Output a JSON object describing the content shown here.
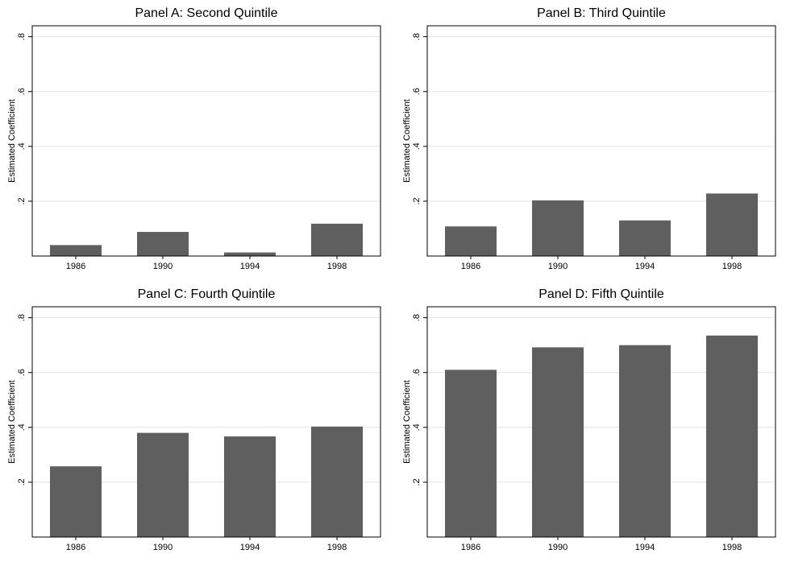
{
  "colors": {
    "bar": "#5f5f5f",
    "grid": "#e3e3e3",
    "axis": "#000000"
  },
  "chart_data": [
    {
      "type": "bar",
      "title": "Panel A: Second Quintile",
      "ylabel": "Estimated Coefficient",
      "categories": [
        "1986",
        "1990",
        "1994",
        "1998"
      ],
      "values": [
        0.04,
        0.088,
        0.013,
        0.118
      ],
      "ylim": [
        0,
        0.84
      ],
      "yticks": [
        0.2,
        0.4,
        0.6,
        0.8
      ],
      "ytick_labels": [
        ".2",
        ".4",
        ".6",
        ".8"
      ],
      "grid": true
    },
    {
      "type": "bar",
      "title": "Panel B: Third Quintile",
      "ylabel": "Estimated Coefficient",
      "categories": [
        "1986",
        "1990",
        "1994",
        "1998"
      ],
      "values": [
        0.108,
        0.203,
        0.13,
        0.228
      ],
      "ylim": [
        0,
        0.84
      ],
      "yticks": [
        0.2,
        0.4,
        0.6,
        0.8
      ],
      "ytick_labels": [
        ".2",
        ".4",
        ".6",
        ".8"
      ],
      "grid": true
    },
    {
      "type": "bar",
      "title": "Panel C: Fourth Quintile",
      "ylabel": "Estimated Coefficient",
      "categories": [
        "1986",
        "1990",
        "1994",
        "1998"
      ],
      "values": [
        0.258,
        0.38,
        0.367,
        0.403
      ],
      "ylim": [
        0,
        0.84
      ],
      "yticks": [
        0.2,
        0.4,
        0.6,
        0.8
      ],
      "ytick_labels": [
        ".2",
        ".4",
        ".6",
        ".8"
      ],
      "grid": true
    },
    {
      "type": "bar",
      "title": "Panel D: Fifth Quintile",
      "ylabel": "Estimated Coefficient",
      "categories": [
        "1986",
        "1990",
        "1994",
        "1998"
      ],
      "values": [
        0.61,
        0.692,
        0.7,
        0.735
      ],
      "ylim": [
        0,
        0.84
      ],
      "yticks": [
        0.2,
        0.4,
        0.6,
        0.8
      ],
      "ytick_labels": [
        ".2",
        ".4",
        ".6",
        ".8"
      ],
      "grid": true
    }
  ]
}
